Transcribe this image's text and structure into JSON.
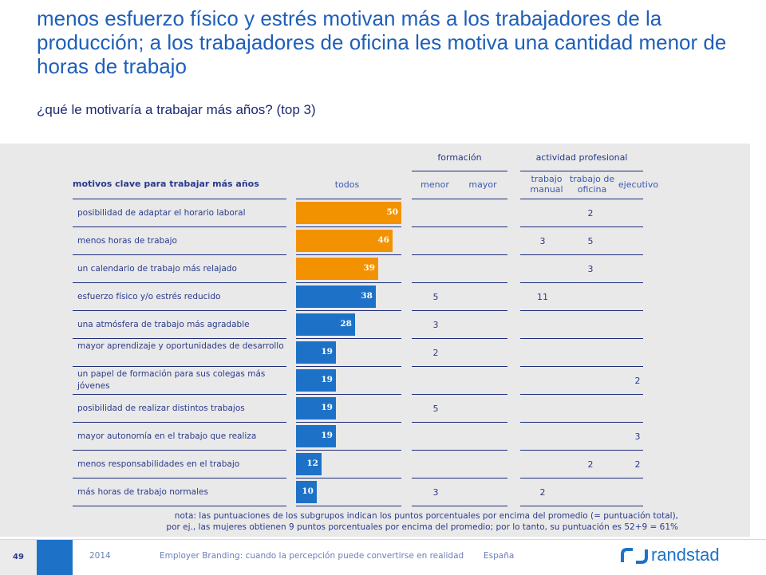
{
  "title": "menos esfuerzo físico y estrés motivan más a los trabajadores de la producción; a los trabajadores de oficina les motiva una cantidad menor de horas de trabajo",
  "subtitle": "¿qué le motivaría a trabajar más años? (top 3)",
  "headers": {
    "group_formacion": "formación",
    "group_actividad": "actividad profesional",
    "row_header": "motivos clave para trabajar más años",
    "todos": "todos",
    "menor": "menor",
    "mayor": "mayor",
    "manual_1": "trabajo",
    "manual_2": "manual",
    "oficina_1": "trabajo de",
    "oficina_2": "oficina",
    "ejecutivo": "ejecutivo"
  },
  "chart_data": {
    "type": "bar",
    "title": "¿qué le motivaría a trabajar más años? (top 3)",
    "categories": [
      "posibilidad de adaptar el horario laboral",
      "menos horas de trabajo",
      "un calendario de trabajo más relajado",
      "esfuerzo físico y/o estrés reducido",
      "una atmósfera de trabajo más agradable",
      "mayor aprendizaje y oportunidades de desarrollo",
      "un papel de formación para sus colegas más jóvenes",
      "posibilidad de realizar distintos trabajos",
      "mayor autonomía en el trabajo que realiza",
      "menos responsabilidades en el trabajo",
      "más horas de trabajo normales"
    ],
    "values": [
      50,
      46,
      39,
      38,
      28,
      19,
      19,
      19,
      19,
      12,
      10
    ],
    "bar_colors": [
      "#f39200",
      "#f39200",
      "#f39200",
      "#1d72c8",
      "#1d72c8",
      "#1d72c8",
      "#1d72c8",
      "#1d72c8",
      "#1d72c8",
      "#1d72c8",
      "#1d72c8"
    ],
    "xlim": [
      0,
      50
    ],
    "subgroups": {
      "menor": [
        "",
        "",
        "",
        "5",
        "3",
        "2",
        "",
        "5",
        "",
        "",
        "3"
      ],
      "mayor": [
        "",
        "",
        "",
        "",
        "",
        "",
        "",
        "",
        "",
        "",
        ""
      ],
      "trabajo_manual": [
        "",
        "3",
        "",
        "11",
        "",
        "",
        "",
        "",
        "",
        "",
        "2"
      ],
      "trabajo_oficina": [
        "2",
        "5",
        "3",
        "",
        "",
        "",
        "",
        "",
        "",
        "2",
        ""
      ],
      "ejecutivo": [
        "",
        "",
        "",
        "",
        "",
        "",
        "2",
        "",
        "3",
        "2",
        ""
      ]
    }
  },
  "note_1": "nota: las puntuaciones de los subgrupos indican los puntos porcentuales por encima del promedio (= puntuación total),",
  "note_2": "por ej., las mujeres obtienen 9 puntos porcentuales por encima del promedio; por lo tanto, su puntuación es 52+9 = 61%",
  "footer": {
    "page_number": "49",
    "year": "2014",
    "doc_title": "Employer Branding: cuando la percepción puede convertirse en realidad",
    "country": "España",
    "brand": "randstad"
  }
}
